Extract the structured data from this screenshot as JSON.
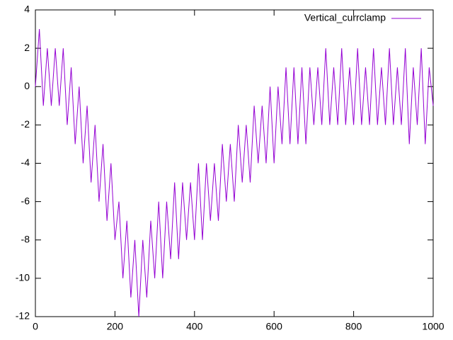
{
  "chart_data": {
    "type": "line",
    "x": [
      0,
      10,
      20,
      30,
      40,
      50,
      60,
      70,
      80,
      90,
      100,
      110,
      120,
      130,
      140,
      150,
      160,
      170,
      180,
      190,
      200,
      210,
      220,
      230,
      240,
      250,
      260,
      270,
      280,
      290,
      300,
      310,
      320,
      330,
      340,
      350,
      360,
      370,
      380,
      390,
      400,
      410,
      420,
      430,
      440,
      450,
      460,
      470,
      480,
      490,
      500,
      510,
      520,
      530,
      540,
      550,
      560,
      570,
      580,
      590,
      600,
      610,
      620,
      630,
      640,
      650,
      660,
      670,
      680,
      690,
      700,
      710,
      720,
      730,
      740,
      750,
      760,
      770,
      780,
      790,
      800,
      810,
      820,
      830,
      840,
      850,
      860,
      870,
      880,
      890,
      900,
      910,
      920,
      930,
      940,
      950,
      960,
      970,
      980,
      990,
      1000
    ],
    "series": [
      {
        "name": "Vertical_currclamp",
        "color": "#9400d3",
        "values": [
          0,
          3,
          -1,
          2,
          -1,
          2,
          -1,
          2,
          -2,
          1,
          -3,
          0,
          -4,
          -1,
          -5,
          -2,
          -6,
          -3,
          -7,
          -4,
          -8,
          -6,
          -10,
          -7,
          -11,
          -8,
          -12,
          -8,
          -11,
          -7,
          -10,
          -6,
          -10,
          -6,
          -9,
          -5,
          -9,
          -5,
          -8,
          -5,
          -8,
          -4,
          -8,
          -4,
          -7,
          -4,
          -7,
          -3,
          -6,
          -3,
          -6,
          -2,
          -5,
          -2,
          -5,
          -1,
          -4,
          -1,
          -4,
          0,
          -4,
          0,
          -3,
          1,
          -3,
          1,
          -3,
          1,
          -3,
          1,
          -2,
          1,
          -2,
          2,
          -2,
          1,
          -2,
          2,
          -2,
          1,
          -2,
          2,
          -2,
          1,
          -2,
          2,
          -2,
          1,
          -2,
          2,
          -2,
          1,
          -2,
          2,
          -3,
          1,
          -2,
          2,
          -3,
          1,
          -1
        ]
      }
    ],
    "xlim": [
      0,
      1000
    ],
    "ylim": [
      -12,
      4
    ],
    "xticks": [
      0,
      200,
      400,
      600,
      800,
      1000
    ],
    "yticks": [
      -12,
      -10,
      -8,
      -6,
      -4,
      -2,
      0,
      2,
      4
    ],
    "legend": "top-right"
  }
}
